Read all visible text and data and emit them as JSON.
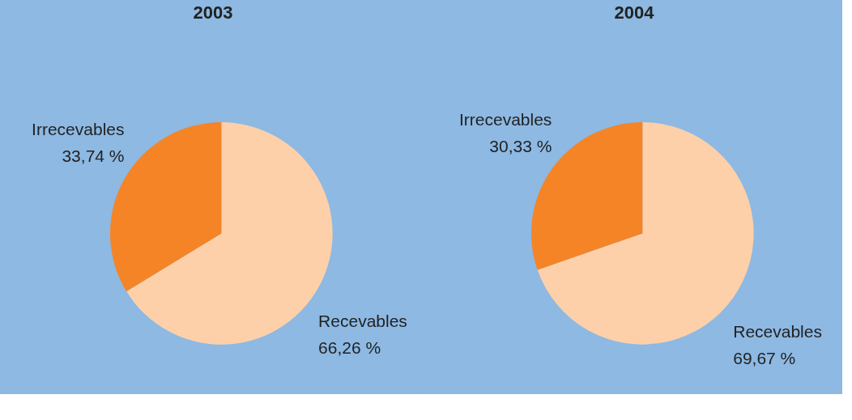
{
  "chart_data": [
    {
      "type": "pie",
      "title": "2003",
      "categories": [
        "Recevables",
        "Irrecevables"
      ],
      "values": [
        66.26,
        33.74
      ],
      "colors": [
        "#fdd0aa",
        "#f58426"
      ],
      "value_labels": [
        "66,26 %",
        "33,74 %"
      ]
    },
    {
      "type": "pie",
      "title": "2004",
      "categories": [
        "Recevables",
        "Irrecevables"
      ],
      "values": [
        69.67,
        30.33
      ],
      "colors": [
        "#fdd0aa",
        "#f58426"
      ],
      "value_labels": [
        "69,67 %",
        "30,33 %"
      ]
    }
  ]
}
